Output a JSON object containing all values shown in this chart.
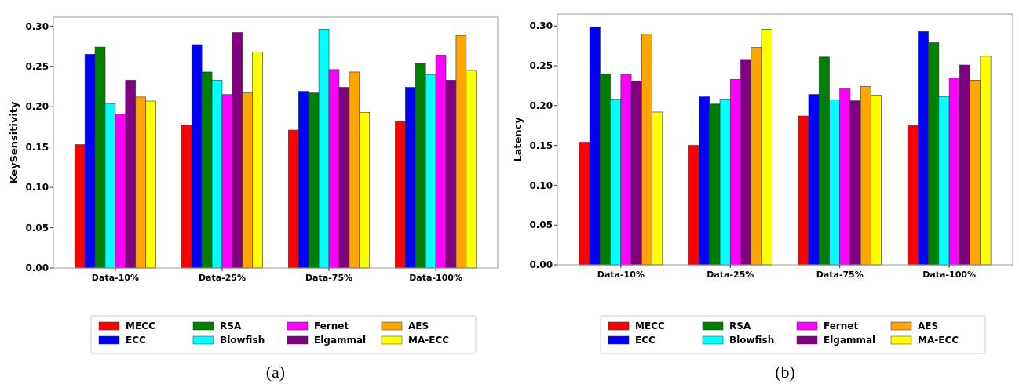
{
  "chart_data": [
    {
      "type": "bar",
      "ylabel": "KeySensitivity",
      "categories": [
        "Data-10%",
        "Data-25%",
        "Data-75%",
        "Data-100%"
      ],
      "ylim": [
        0,
        0.311
      ],
      "yticks": [
        {
          "value": 0,
          "label": "0.00"
        },
        {
          "value": 0.05,
          "label": "0.05"
        },
        {
          "value": 0.1,
          "label": "0.10"
        },
        {
          "value": 0.15,
          "label": "0.15"
        },
        {
          "value": 0.2,
          "label": "0.20"
        },
        {
          "value": 0.25,
          "label": "0.25"
        },
        {
          "value": 0.3,
          "label": "0.30"
        }
      ],
      "legend": "bottom",
      "annotations": [
        "(a)"
      ],
      "series": [
        {
          "name": "MECC",
          "color": "#ff0000",
          "values": [
            0.153,
            0.177,
            0.171,
            0.182
          ]
        },
        {
          "name": "ECC",
          "color": "#0000ff",
          "values": [
            0.265,
            0.277,
            0.219,
            0.224
          ]
        },
        {
          "name": "RSA",
          "color": "#008000",
          "values": [
            0.274,
            0.243,
            0.217,
            0.254
          ]
        },
        {
          "name": "Blowfish",
          "color": "#00ffff",
          "values": [
            0.204,
            0.233,
            0.296,
            0.24
          ]
        },
        {
          "name": "Fernet",
          "color": "#ff00ff",
          "values": [
            0.191,
            0.215,
            0.246,
            0.264
          ]
        },
        {
          "name": "Elgammal",
          "color": "#800080",
          "values": [
            0.233,
            0.292,
            0.224,
            0.233
          ]
        },
        {
          "name": "AES",
          "color": "#ffa500",
          "values": [
            0.212,
            0.217,
            0.243,
            0.288
          ]
        },
        {
          "name": "MA-ECC",
          "color": "#ffff00",
          "values": [
            0.207,
            0.268,
            0.193,
            0.245
          ]
        }
      ]
    },
    {
      "type": "bar",
      "ylabel": "Latency",
      "categories": [
        "Data-10%",
        "Data-25%",
        "Data-75%",
        "Data-100%"
      ],
      "ylim": [
        0,
        0.315
      ],
      "yticks": [
        {
          "value": 0,
          "label": "0.00"
        },
        {
          "value": 0.05,
          "label": "0.05"
        },
        {
          "value": 0.1,
          "label": "0.10"
        },
        {
          "value": 0.15,
          "label": "0.15"
        },
        {
          "value": 0.2,
          "label": "0.20"
        },
        {
          "value": 0.25,
          "label": "0.25"
        },
        {
          "value": 0.3,
          "label": "0.30"
        }
      ],
      "legend": "bottom",
      "annotations": [
        "(b)"
      ],
      "series": [
        {
          "name": "MECC",
          "color": "#ff0000",
          "values": [
            0.154,
            0.15,
            0.187,
            0.175
          ]
        },
        {
          "name": "ECC",
          "color": "#0000ff",
          "values": [
            0.299,
            0.211,
            0.214,
            0.293
          ]
        },
        {
          "name": "RSA",
          "color": "#008000",
          "values": [
            0.24,
            0.202,
            0.261,
            0.279
          ]
        },
        {
          "name": "Blowfish",
          "color": "#00ffff",
          "values": [
            0.208,
            0.208,
            0.207,
            0.211
          ]
        },
        {
          "name": "Fernet",
          "color": "#ff00ff",
          "values": [
            0.239,
            0.233,
            0.222,
            0.235
          ]
        },
        {
          "name": "Elgammal",
          "color": "#800080",
          "values": [
            0.231,
            0.258,
            0.206,
            0.251
          ]
        },
        {
          "name": "AES",
          "color": "#ffa500",
          "values": [
            0.29,
            0.273,
            0.224,
            0.232
          ]
        },
        {
          "name": "MA-ECC",
          "color": "#ffff00",
          "values": [
            0.192,
            0.296,
            0.213,
            0.262
          ]
        }
      ]
    }
  ]
}
